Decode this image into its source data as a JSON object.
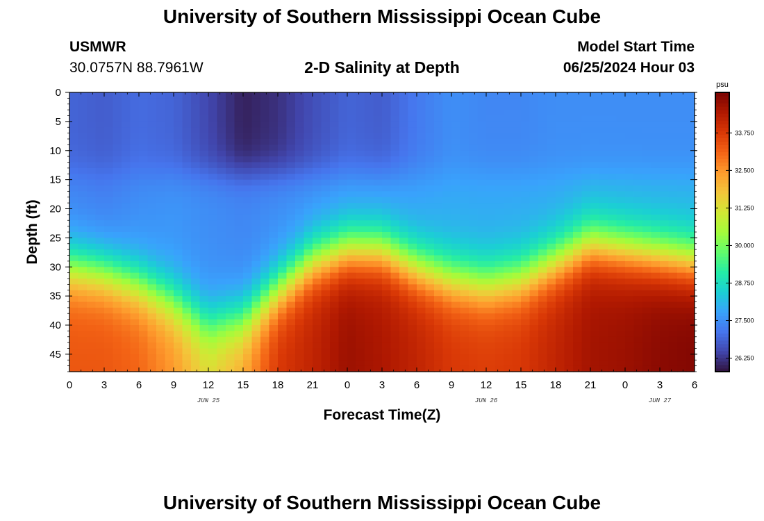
{
  "header": {
    "title": "University of Southern Mississippi Ocean Cube",
    "station": "USMWR",
    "coords": "30.0757N  88.7961W",
    "subtitle": "2-D Salinity at Depth",
    "model_start_label": "Model Start Time",
    "model_start_value": "06/25/2024 Hour 03"
  },
  "footer": {
    "title": "University of Southern Mississippi Ocean Cube"
  },
  "chart_data": {
    "type": "heatmap",
    "xlabel": "Forecast Time(Z)",
    "ylabel": "Depth (ft)",
    "x_tick_labels": [
      "0",
      "3",
      "6",
      "9",
      "12",
      "15",
      "18",
      "21",
      "0",
      "3",
      "6",
      "9",
      "12",
      "15",
      "18",
      "21",
      "0",
      "3",
      "6"
    ],
    "x_hours": [
      0,
      3,
      6,
      9,
      12,
      15,
      18,
      21,
      24,
      27,
      30,
      33,
      36,
      39,
      42,
      45,
      48,
      51,
      54
    ],
    "date_labels": [
      {
        "hour": 12,
        "text": "JUN 25"
      },
      {
        "hour": 36,
        "text": "JUN 26"
      },
      {
        "hour": 51,
        "text": "JUN 27"
      }
    ],
    "xlim": [
      0,
      54
    ],
    "y_ticks": [
      0,
      5,
      10,
      15,
      20,
      25,
      30,
      35,
      40,
      45
    ],
    "ylim": [
      0,
      48
    ],
    "y_inverted": true,
    "colorbar": {
      "unit": "psu",
      "range": [
        25.8,
        35.1
      ],
      "ticks": [
        "26.250",
        "27.500",
        "28.750",
        "30.000",
        "31.250",
        "32.500",
        "33.750"
      ],
      "tick_values": [
        26.25,
        27.5,
        28.75,
        30.0,
        31.25,
        32.5,
        33.75
      ],
      "colors": [
        "#30123b",
        "#4145ab",
        "#4675ed",
        "#39a2fc",
        "#1bcfd4",
        "#24eca6",
        "#61fc6c",
        "#a4fc3b",
        "#d1e834",
        "#f3c63a",
        "#fe9b2d",
        "#f36315",
        "#d93806",
        "#b11901",
        "#7a0402"
      ]
    },
    "profiles": [
      {
        "hour": 0,
        "surface": 26.9,
        "mid": 27.4,
        "halocline_depth": 30,
        "bottom": 33.3
      },
      {
        "hour": 3,
        "surface": 26.8,
        "mid": 27.3,
        "halocline_depth": 31,
        "bottom": 33.3
      },
      {
        "hour": 6,
        "surface": 27.0,
        "mid": 27.5,
        "halocline_depth": 33,
        "bottom": 33.1
      },
      {
        "hour": 9,
        "surface": 26.9,
        "mid": 27.6,
        "halocline_depth": 36,
        "bottom": 32.5
      },
      {
        "hour": 12,
        "surface": 26.5,
        "mid": 27.5,
        "halocline_depth": 40,
        "bottom": 31.5
      },
      {
        "hour": 15,
        "surface": 26.0,
        "mid": 27.4,
        "halocline_depth": 39,
        "bottom": 32.3
      },
      {
        "hour": 18,
        "surface": 26.2,
        "mid": 27.5,
        "halocline_depth": 34,
        "bottom": 33.8
      },
      {
        "hour": 21,
        "surface": 26.6,
        "mid": 27.6,
        "halocline_depth": 29,
        "bottom": 34.2
      },
      {
        "hour": 24,
        "surface": 26.9,
        "mid": 27.7,
        "halocline_depth": 27,
        "bottom": 34.7
      },
      {
        "hour": 27,
        "surface": 26.8,
        "mid": 27.7,
        "halocline_depth": 27,
        "bottom": 34.5
      },
      {
        "hour": 30,
        "surface": 27.2,
        "mid": 27.8,
        "halocline_depth": 30,
        "bottom": 34.2
      },
      {
        "hour": 33,
        "surface": 27.5,
        "mid": 27.9,
        "halocline_depth": 32,
        "bottom": 33.8
      },
      {
        "hour": 36,
        "surface": 27.4,
        "mid": 27.9,
        "halocline_depth": 33,
        "bottom": 33.7
      },
      {
        "hour": 39,
        "surface": 27.4,
        "mid": 27.9,
        "halocline_depth": 32,
        "bottom": 33.8
      },
      {
        "hour": 42,
        "surface": 27.5,
        "mid": 27.9,
        "halocline_depth": 29,
        "bottom": 34.2
      },
      {
        "hour": 45,
        "surface": 27.5,
        "mid": 28.0,
        "halocline_depth": 26,
        "bottom": 34.6
      },
      {
        "hour": 48,
        "surface": 27.5,
        "mid": 28.0,
        "halocline_depth": 27,
        "bottom": 34.7
      },
      {
        "hour": 51,
        "surface": 27.5,
        "mid": 28.0,
        "halocline_depth": 28,
        "bottom": 34.9
      },
      {
        "hour": 54,
        "surface": 27.5,
        "mid": 28.0,
        "halocline_depth": 29,
        "bottom": 35.0
      }
    ]
  }
}
